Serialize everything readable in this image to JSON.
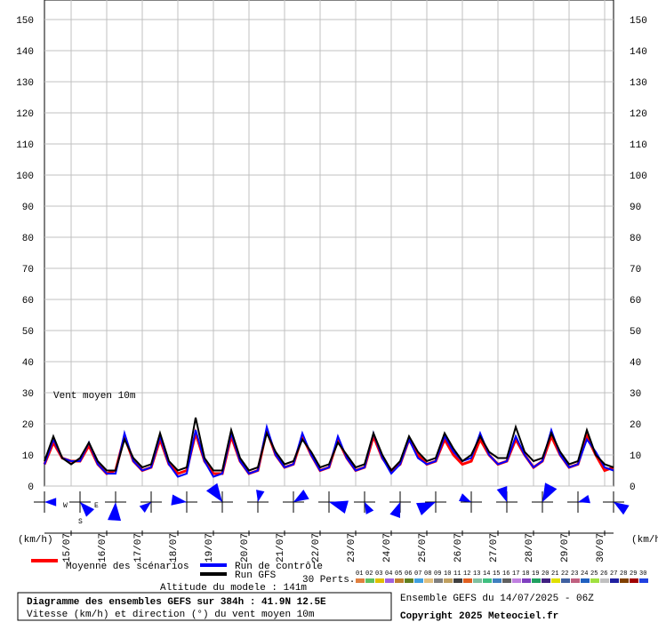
{
  "chart_data": {
    "type": "line",
    "annotation": "Vent moyen 10m",
    "y_unit_left": "(km/h)",
    "y_unit_right": "(km/h)",
    "compass": {
      "west": "W",
      "east": "E",
      "south": "S"
    },
    "x": [
      0,
      6,
      12,
      18,
      24,
      30,
      36,
      42,
      48,
      54,
      60,
      66,
      72,
      78,
      84,
      90,
      96,
      102,
      108,
      114,
      120,
      126,
      132,
      138,
      144,
      150,
      156,
      162,
      168,
      174,
      180,
      186,
      192,
      198,
      204,
      210,
      216,
      222,
      228,
      234,
      240,
      246,
      252,
      258,
      264,
      270,
      276,
      282,
      288,
      294,
      300,
      306,
      312,
      318,
      324,
      330,
      336,
      342,
      348,
      354,
      360,
      366,
      372,
      378,
      384
    ],
    "xlim": [
      0,
      384
    ],
    "xticks": [
      {
        "value": 18,
        "label": "15/07"
      },
      {
        "value": 42,
        "label": "16/07"
      },
      {
        "value": 66,
        "label": "17/07"
      },
      {
        "value": 90,
        "label": "18/07"
      },
      {
        "value": 114,
        "label": "19/07"
      },
      {
        "value": 138,
        "label": "20/07"
      },
      {
        "value": 162,
        "label": "21/07"
      },
      {
        "value": 186,
        "label": "22/07"
      },
      {
        "value": 210,
        "label": "23/07"
      },
      {
        "value": 234,
        "label": "24/07"
      },
      {
        "value": 258,
        "label": "25/07"
      },
      {
        "value": 282,
        "label": "26/07"
      },
      {
        "value": 306,
        "label": "27/07"
      },
      {
        "value": 330,
        "label": "28/07"
      },
      {
        "value": 354,
        "label": "29/07"
      },
      {
        "value": 378,
        "label": "30/07"
      }
    ],
    "ylim": [
      0,
      150
    ],
    "yticks": [
      0,
      10,
      20,
      30,
      40,
      50,
      60,
      70,
      80,
      90,
      100,
      110,
      120,
      130,
      140,
      150
    ],
    "grid": true,
    "series": [
      {
        "name": "Moyenne des scénarios",
        "color": "#ff0000",
        "values": [
          7,
          14,
          9,
          8,
          8,
          13,
          7,
          4,
          5,
          16,
          8,
          5,
          6,
          15,
          7,
          4,
          5,
          17,
          8,
          4,
          4,
          16,
          8,
          4,
          5,
          18,
          10,
          6,
          7,
          16,
          10,
          5,
          6,
          15,
          9,
          5,
          6,
          16,
          9,
          5,
          7,
          15,
          10,
          7,
          8,
          15,
          10,
          7,
          8,
          15,
          10,
          7,
          8,
          15,
          10,
          6,
          8,
          16,
          10,
          6,
          7,
          16,
          10,
          5,
          6
        ]
      },
      {
        "name": "Run de contrôle",
        "color": "#0000ff",
        "values": [
          7,
          15,
          9,
          8,
          8,
          14,
          7,
          4,
          4,
          17,
          8,
          5,
          6,
          16,
          7,
          3,
          4,
          18,
          8,
          3,
          4,
          17,
          8,
          4,
          5,
          19,
          10,
          6,
          7,
          17,
          10,
          5,
          6,
          16,
          9,
          5,
          6,
          17,
          9,
          4,
          7,
          15,
          9,
          7,
          8,
          16,
          11,
          8,
          9,
          17,
          10,
          7,
          8,
          16,
          10,
          6,
          8,
          18,
          10,
          6,
          7,
          15,
          11,
          6,
          5
        ]
      },
      {
        "name": "Run GFS",
        "color": "#000000",
        "values": [
          8,
          16,
          9,
          7,
          9,
          14,
          8,
          5,
          5,
          15,
          9,
          6,
          7,
          17,
          8,
          5,
          6,
          22,
          9,
          5,
          5,
          18,
          9,
          5,
          6,
          17,
          11,
          7,
          8,
          15,
          11,
          6,
          7,
          14,
          10,
          6,
          7,
          17,
          10,
          5,
          8,
          16,
          11,
          8,
          9,
          17,
          12,
          8,
          10,
          16,
          11,
          9,
          9,
          19,
          11,
          8,
          9,
          17,
          11,
          7,
          8,
          18,
          10,
          7,
          6
        ]
      }
    ],
    "perturbations": {
      "label": "30 Perts.",
      "names": [
        "01",
        "02",
        "03",
        "04",
        "05",
        "06",
        "07",
        "08",
        "09",
        "10",
        "11",
        "12",
        "13",
        "14",
        "15",
        "16",
        "17",
        "18",
        "19",
        "20",
        "21",
        "22",
        "23",
        "24",
        "25",
        "26",
        "27",
        "28",
        "29",
        "30"
      ],
      "colors": [
        "#e08040",
        "#60c060",
        "#e0c000",
        "#a060e0",
        "#c08030",
        "#608020",
        "#40a0e0",
        "#e0c080",
        "#808080",
        "#c0a060",
        "#404040",
        "#e06020",
        "#80c0a0",
        "#40c080",
        "#4080c0",
        "#606060",
        "#c080e0",
        "#8040c0",
        "#20a060",
        "#402080",
        "#e0e000",
        "#4060a0",
        "#c06080",
        "#2060c0",
        "#a0e040",
        "#c0c0c0",
        "#2020a0",
        "#804000",
        "#a00000",
        "#2040e0"
      ]
    },
    "altitude": "Altitude du modele : 141m",
    "title": "Diagramme des ensembles GEFS sur 384h : 41.9N 12.5E",
    "subtitle": "Vitesse (km/h) et direction (°) du vent moyen 10m",
    "run_info": "Ensemble GEFS du 14/07/2025 - 06Z",
    "copyright": "Copyright 2025 Meteociel.fr"
  }
}
